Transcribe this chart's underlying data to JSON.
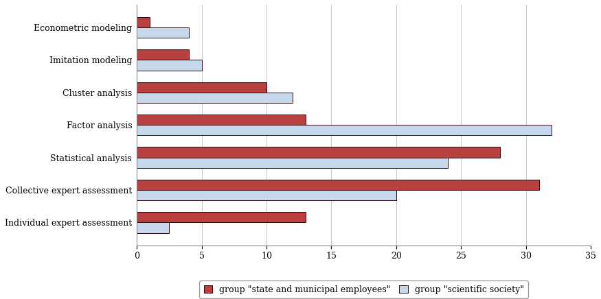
{
  "categories": [
    "Individual expert assessment",
    "Collective expert assessment",
    "Statistical analysis",
    "Factor analysis",
    "Cluster analysis",
    "Imitation modeling",
    "Econometric modeling"
  ],
  "group1_values": [
    13,
    31,
    28,
    13,
    10,
    4,
    1
  ],
  "group2_values": [
    2.5,
    20,
    24,
    32,
    12,
    5,
    4
  ],
  "group1_label": "group \"state and municipal employees\"",
  "group2_label": "group \"scientific society\"",
  "group1_color": "#b94040",
  "group2_color": "#c8d8ec",
  "group1_edgecolor": "#2a0a0a",
  "group2_edgecolor": "#2a0a0a",
  "xlim": [
    0,
    35
  ],
  "xticks": [
    0,
    5,
    10,
    15,
    20,
    25,
    30,
    35
  ],
  "bar_height": 0.32,
  "figsize": [
    8.75,
    4.36
  ],
  "dpi": 100,
  "bg_color": "#ffffff",
  "grid_color": "#bbbbbb",
  "font_size": 9,
  "legend_font_size": 9
}
